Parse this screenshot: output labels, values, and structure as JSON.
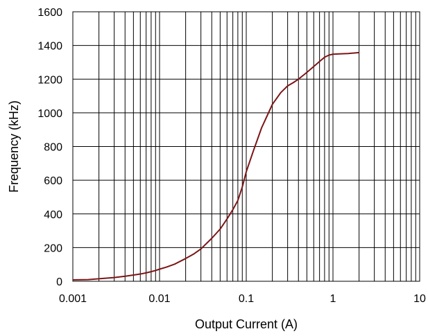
{
  "chart_data": {
    "type": "line",
    "title": "",
    "xlabel": "Output Current (A)",
    "ylabel": "Frequency (kHz)",
    "xscale": "log",
    "xlim": [
      0.001,
      10
    ],
    "ylim": [
      0,
      1600
    ],
    "xticks": [
      0.001,
      0.01,
      0.1,
      1,
      10
    ],
    "xtick_labels": [
      "0.001",
      "0.01",
      "0.1",
      "1",
      "10"
    ],
    "yticks": [
      0,
      200,
      400,
      600,
      800,
      1000,
      1200,
      1400,
      1600
    ],
    "ytick_labels": [
      "0",
      "200",
      "400",
      "600",
      "800",
      "1000",
      "1200",
      "1400",
      "1600"
    ],
    "grid": true,
    "series": [
      {
        "color": "#7b1416",
        "x": [
          0.001,
          0.0015,
          0.002,
          0.003,
          0.004,
          0.005,
          0.006,
          0.007,
          0.008,
          0.009,
          0.01,
          0.012,
          0.015,
          0.02,
          0.025,
          0.03,
          0.04,
          0.05,
          0.06,
          0.07,
          0.08,
          0.09,
          0.1,
          0.12,
          0.15,
          0.2,
          0.25,
          0.3,
          0.35,
          0.4,
          0.5,
          0.6,
          0.7,
          0.8,
          0.9,
          1.0,
          1.2,
          1.5,
          2.0
        ],
        "y": [
          8,
          10,
          15,
          22,
          30,
          37,
          43,
          50,
          57,
          64,
          72,
          84,
          102,
          135,
          163,
          192,
          255,
          310,
          370,
          425,
          480,
          560,
          650,
          770,
          910,
          1050,
          1120,
          1160,
          1180,
          1200,
          1240,
          1275,
          1305,
          1330,
          1343,
          1348,
          1350,
          1352,
          1358
        ]
      }
    ]
  }
}
